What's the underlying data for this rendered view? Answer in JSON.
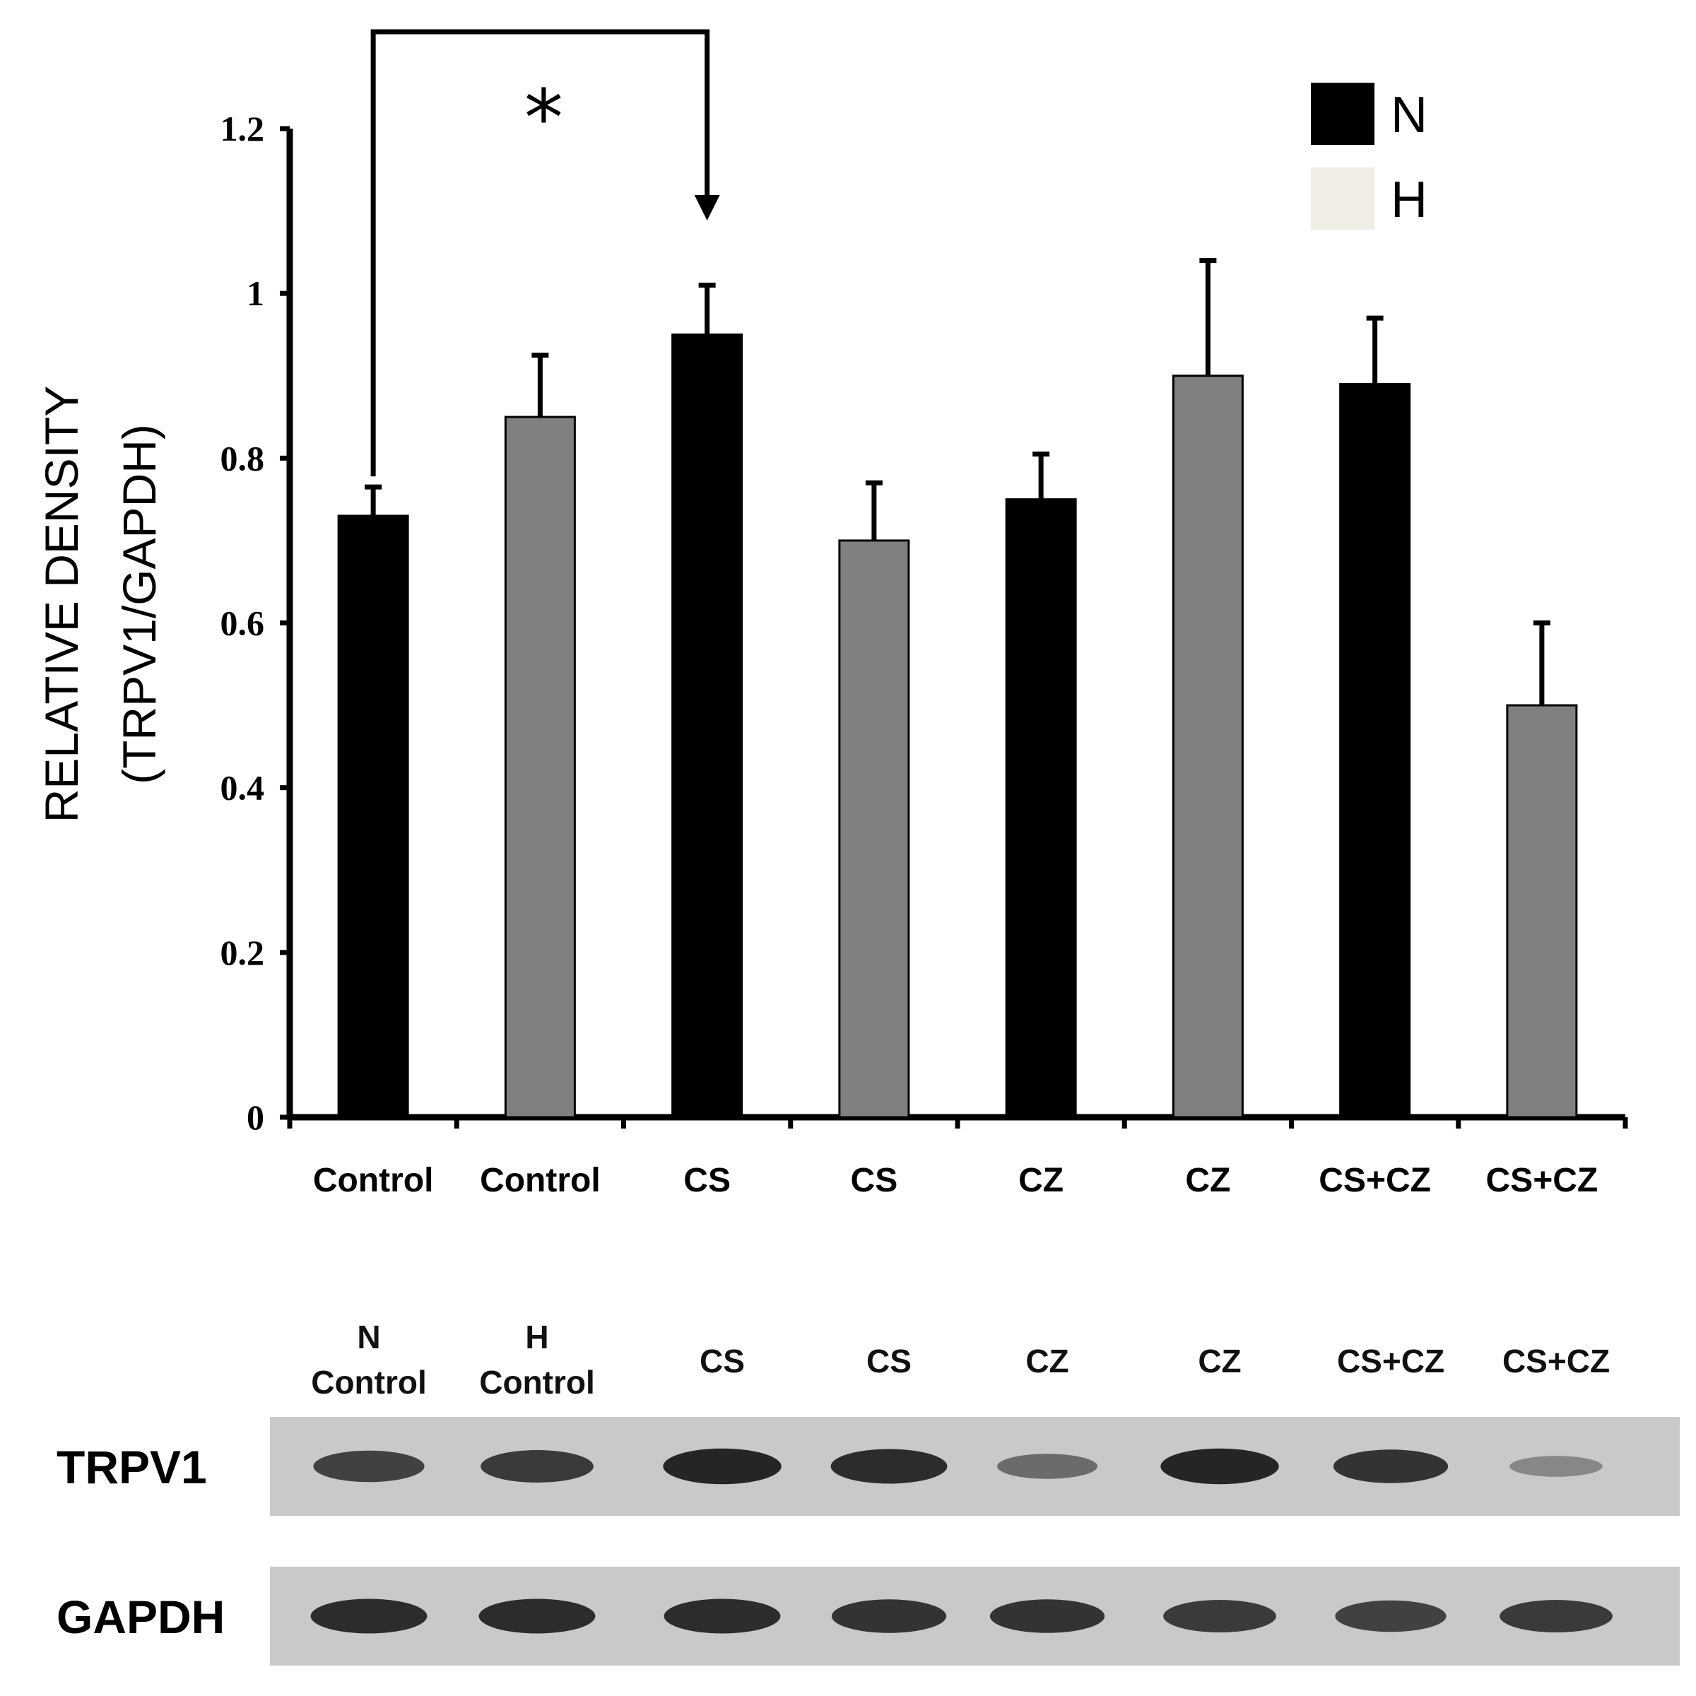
{
  "chart_data": {
    "type": "bar",
    "categories": [
      "Control",
      "Control",
      "CS",
      "CS",
      "CZ",
      "CZ",
      "CS+CZ",
      "CS+CZ"
    ],
    "groups": [
      "N",
      "H",
      "N",
      "H",
      "N",
      "H",
      "N",
      "H"
    ],
    "values": [
      0.73,
      0.85,
      0.95,
      0.7,
      0.75,
      0.9,
      0.89,
      0.5
    ],
    "errors": [
      0.035,
      0.075,
      0.06,
      0.07,
      0.055,
      0.14,
      0.08,
      0.1
    ],
    "ylabel_line1": "RELATIVE DENSITY",
    "ylabel_line2": "(TRPV1/GAPDH)",
    "ylim": [
      0,
      1.2
    ],
    "yticks": [
      0,
      0.2,
      0.4,
      0.6,
      0.8,
      1.0,
      1.2
    ],
    "ytick_labels": [
      "0",
      "0.2",
      "0.4",
      "0.6",
      "0.8",
      "1",
      "1.2"
    ],
    "legend": [
      {
        "name": "N",
        "color": "#000000"
      },
      {
        "name": "H",
        "color": "#efede4"
      }
    ],
    "legend_position": "top-right",
    "bar_colors": {
      "N": "#000000",
      "H": "#808080"
    },
    "grid": false,
    "significance": {
      "from": 0,
      "to": 2,
      "label": "*"
    }
  },
  "blot": {
    "lane_labels": [
      {
        "line1": "N",
        "line2": "Control"
      },
      {
        "line1": "H",
        "line2": "Control"
      },
      {
        "line1": "",
        "line2": "CS"
      },
      {
        "line1": "",
        "line2": "CS"
      },
      {
        "line1": "",
        "line2": "CZ"
      },
      {
        "line1": "",
        "line2": "CZ"
      },
      {
        "line1": "",
        "line2": "CS+CZ"
      },
      {
        "line1": "",
        "line2": "CS+CZ"
      }
    ],
    "rows": [
      {
        "label": "TRPV1",
        "band_intensity": [
          0.75,
          0.8,
          0.95,
          0.9,
          0.45,
          0.95,
          0.85,
          0.25
        ]
      },
      {
        "label": "GAPDH",
        "band_intensity": [
          0.9,
          0.9,
          0.9,
          0.85,
          0.85,
          0.8,
          0.75,
          0.8
        ]
      }
    ]
  }
}
